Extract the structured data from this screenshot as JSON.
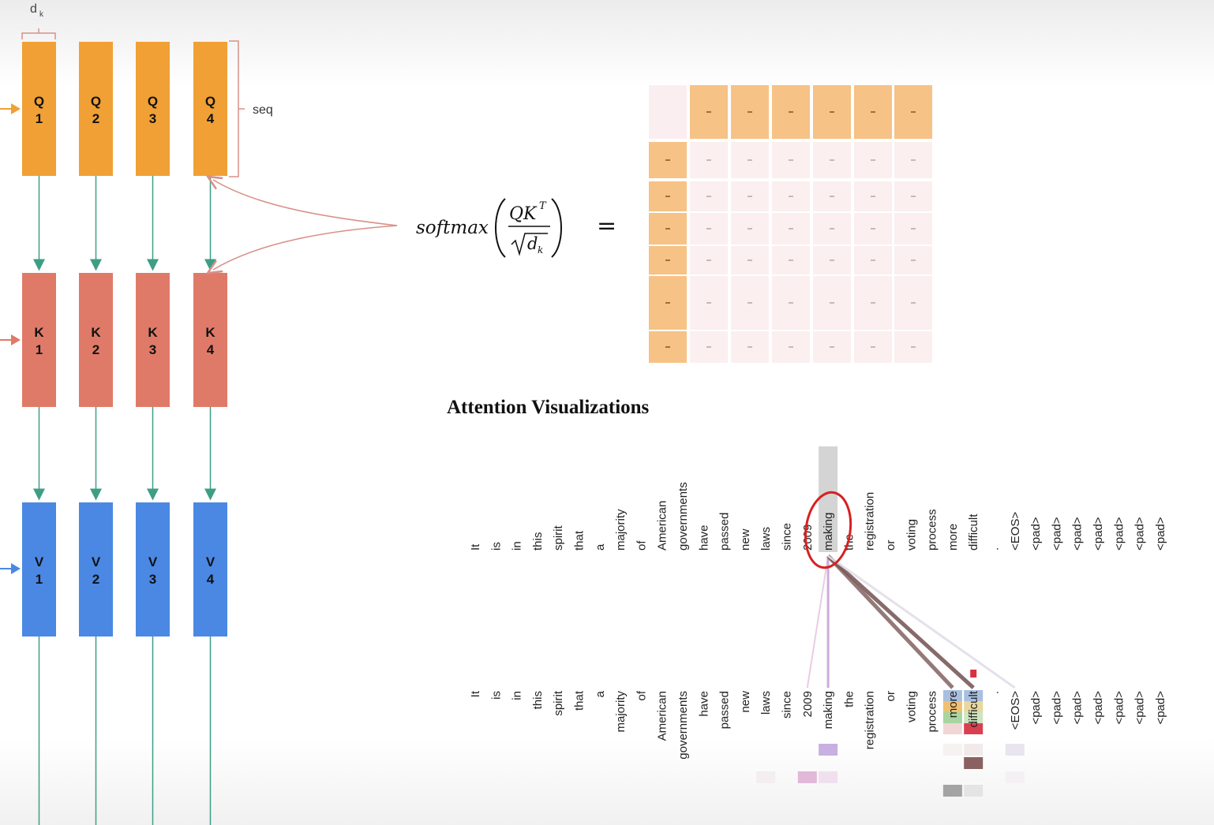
{
  "dk_label": "d",
  "dk_sub": "k",
  "seq_label": "seq",
  "q_boxes": [
    {
      "letter": "Q",
      "num": "1"
    },
    {
      "letter": "Q",
      "num": "2"
    },
    {
      "letter": "Q",
      "num": "3"
    },
    {
      "letter": "Q",
      "num": "4"
    }
  ],
  "k_boxes": [
    {
      "letter": "K",
      "num": "1"
    },
    {
      "letter": "K",
      "num": "2"
    },
    {
      "letter": "K",
      "num": "3"
    },
    {
      "letter": "K",
      "num": "4"
    }
  ],
  "v_boxes": [
    {
      "letter": "V",
      "num": "1"
    },
    {
      "letter": "V",
      "num": "2"
    },
    {
      "letter": "V",
      "num": "3"
    },
    {
      "letter": "V",
      "num": "4"
    }
  ],
  "formula": {
    "func": "softmax",
    "numerator": "QK",
    "sup": "T",
    "denominator": "d",
    "den_sub": "k",
    "equals": "="
  },
  "colors": {
    "query": "#f0a035",
    "key": "#e07a68",
    "value": "#4a88e3",
    "arrow": "#3e9e84",
    "curve": "#d89088",
    "matrix_header": "#f6c286",
    "matrix_cell": "#fbeff0"
  },
  "title": "Attention Visualizations",
  "tokens": [
    "It",
    "is",
    "in",
    "this",
    "spirit",
    "that",
    "a",
    "majority",
    "of",
    "American",
    "governments",
    "have",
    "passed",
    "new",
    "laws",
    "since",
    "2009",
    "making",
    "the",
    "registration",
    "or",
    "voting",
    "process",
    "more",
    "difficult",
    ".",
    "<EOS>",
    "<pad>",
    "<pad>",
    "<pad>",
    "<pad>",
    "<pad>",
    "<pad>",
    "<pad>"
  ],
  "highlight_token": "making"
}
